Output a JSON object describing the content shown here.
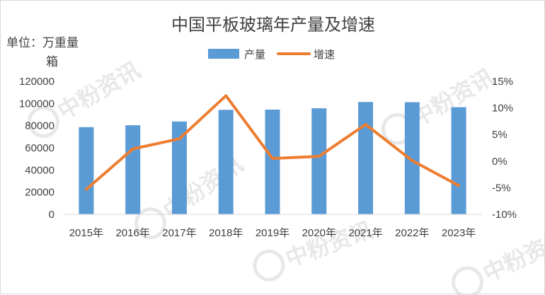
{
  "chart_data": {
    "type": "bar",
    "title": "中国平板玻璃年产量及增速",
    "unit_label": "单位：万重量箱",
    "categories": [
      "2015年",
      "2016年",
      "2017年",
      "2018年",
      "2019年",
      "2020年",
      "2021年",
      "2022年",
      "2023年"
    ],
    "series": [
      {
        "name": "产量",
        "type": "bar",
        "axis": "left",
        "color": "#5b9bd5",
        "values": [
          78700,
          80400,
          83800,
          94300,
          94500,
          95700,
          101400,
          101200,
          96700
        ]
      },
      {
        "name": "增速",
        "type": "line",
        "axis": "right",
        "color": "#ed7d31",
        "values": [
          -5.3,
          2.3,
          4.2,
          12.3,
          0.5,
          0.9,
          6.9,
          0.1,
          -4.6
        ]
      }
    ],
    "left_axis": {
      "min": 0,
      "max": 120000,
      "step": 20000,
      "ticks": [
        "0",
        "20000",
        "40000",
        "60000",
        "80000",
        "100000",
        "120000"
      ]
    },
    "right_axis": {
      "min": -10,
      "max": 15,
      "step": 5,
      "ticks": [
        "-10%",
        "-5%",
        "0%",
        "5%",
        "10%",
        "15%"
      ]
    },
    "legend_position": "top",
    "grid": false
  },
  "watermark": {
    "text": "中粉资讯"
  }
}
